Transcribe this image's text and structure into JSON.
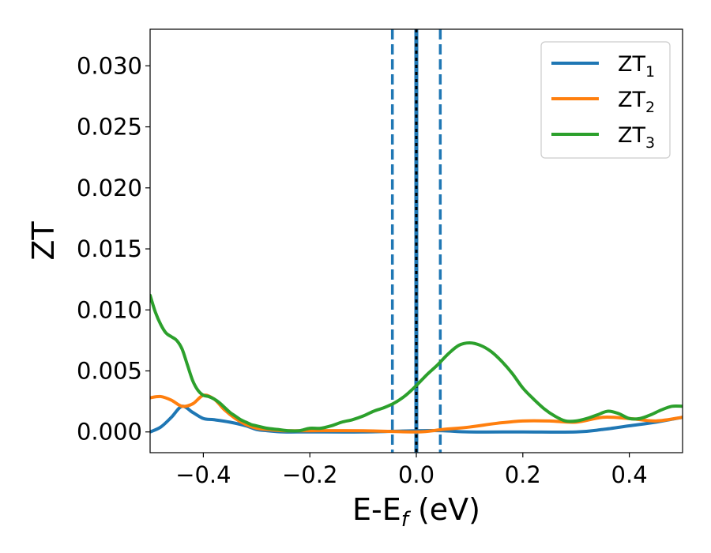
{
  "chart_data": {
    "type": "line",
    "xlabel": {
      "main": "E-E",
      "sub": "f",
      "suffix": " (eV)"
    },
    "ylabel": "ZT",
    "xlim": [
      -0.5,
      0.5
    ],
    "ylim": [
      -0.0017,
      0.033
    ],
    "xticks": [
      -0.4,
      -0.2,
      0.0,
      0.2,
      0.4
    ],
    "xtick_labels": [
      "−0.4",
      "−0.2",
      "0.0",
      "0.2",
      "0.4"
    ],
    "yticks": [
      0.0,
      0.005,
      0.01,
      0.015,
      0.02,
      0.025,
      0.03
    ],
    "ytick_labels": [
      "0.000",
      "0.005",
      "0.010",
      "0.015",
      "0.020",
      "0.025",
      "0.030"
    ],
    "grid": false,
    "legend_position": "top-right",
    "vertical_lines": [
      {
        "x": -0.045,
        "style": "dashed",
        "color": "#1f77b4"
      },
      {
        "x": 0.0,
        "style": "solid",
        "color": "#1f77b4"
      },
      {
        "x": 0.0,
        "style": "dotted",
        "color": "#000000"
      },
      {
        "x": 0.045,
        "style": "dashed",
        "color": "#1f77b4"
      }
    ],
    "series": [
      {
        "name": "ZT",
        "name_sub": "1",
        "color": "#1f77b4",
        "x": [
          -0.5,
          -0.48,
          -0.46,
          -0.44,
          -0.42,
          -0.4,
          -0.38,
          -0.35,
          -0.32,
          -0.3,
          -0.28,
          -0.25,
          -0.2,
          -0.1,
          0.0,
          0.05,
          0.1,
          0.2,
          0.3,
          0.35,
          0.4,
          0.45,
          0.5
        ],
        "values": [
          0.0,
          0.0004,
          0.0012,
          0.0021,
          0.0016,
          0.0011,
          0.001,
          0.0008,
          0.0005,
          0.0002,
          0.0001,
          0.0,
          0.0,
          0.0,
          0.0001,
          0.0001,
          0.0,
          0.0,
          0.0,
          0.0002,
          0.0005,
          0.0008,
          0.0012
        ]
      },
      {
        "name": "ZT",
        "name_sub": "2",
        "color": "#ff7f0e",
        "x": [
          -0.5,
          -0.48,
          -0.46,
          -0.44,
          -0.42,
          -0.4,
          -0.38,
          -0.36,
          -0.34,
          -0.32,
          -0.3,
          -0.28,
          -0.25,
          -0.2,
          -0.1,
          0.0,
          0.05,
          0.1,
          0.15,
          0.2,
          0.25,
          0.3,
          0.35,
          0.4,
          0.45,
          0.5
        ],
        "values": [
          0.0028,
          0.0029,
          0.0026,
          0.0021,
          0.0023,
          0.003,
          0.0027,
          0.0018,
          0.0011,
          0.0006,
          0.0003,
          0.0002,
          0.0001,
          0.0001,
          0.0001,
          0.0,
          0.0002,
          0.0004,
          0.0007,
          0.0009,
          0.0009,
          0.0008,
          0.0012,
          0.0011,
          0.0009,
          0.0012
        ]
      },
      {
        "name": "ZT",
        "name_sub": "3",
        "color": "#2ca02c",
        "x": [
          -0.5,
          -0.49,
          -0.48,
          -0.47,
          -0.46,
          -0.45,
          -0.44,
          -0.43,
          -0.42,
          -0.41,
          -0.4,
          -0.39,
          -0.38,
          -0.37,
          -0.36,
          -0.35,
          -0.34,
          -0.33,
          -0.32,
          -0.31,
          -0.3,
          -0.28,
          -0.26,
          -0.24,
          -0.22,
          -0.2,
          -0.18,
          -0.16,
          -0.14,
          -0.12,
          -0.1,
          -0.08,
          -0.06,
          -0.04,
          -0.02,
          0.0,
          0.02,
          0.04,
          0.06,
          0.08,
          0.1,
          0.12,
          0.14,
          0.16,
          0.18,
          0.2,
          0.22,
          0.24,
          0.26,
          0.28,
          0.3,
          0.32,
          0.34,
          0.36,
          0.38,
          0.4,
          0.42,
          0.44,
          0.46,
          0.48,
          0.5
        ],
        "values": [
          0.0112,
          0.0098,
          0.0088,
          0.0081,
          0.0078,
          0.0075,
          0.0068,
          0.0055,
          0.0042,
          0.0034,
          0.003,
          0.0029,
          0.0027,
          0.0024,
          0.002,
          0.0016,
          0.0013,
          0.001,
          0.0008,
          0.0006,
          0.0005,
          0.0003,
          0.0002,
          0.0001,
          0.0001,
          0.0003,
          0.0003,
          0.0005,
          0.0008,
          0.001,
          0.0013,
          0.0017,
          0.002,
          0.0024,
          0.003,
          0.0038,
          0.0047,
          0.0055,
          0.0064,
          0.0071,
          0.0073,
          0.0071,
          0.0066,
          0.0058,
          0.0048,
          0.0036,
          0.0027,
          0.0019,
          0.0013,
          0.0009,
          0.0009,
          0.0011,
          0.0014,
          0.0017,
          0.0015,
          0.0011,
          0.0011,
          0.0014,
          0.0018,
          0.0021,
          0.0021
        ]
      }
    ]
  }
}
